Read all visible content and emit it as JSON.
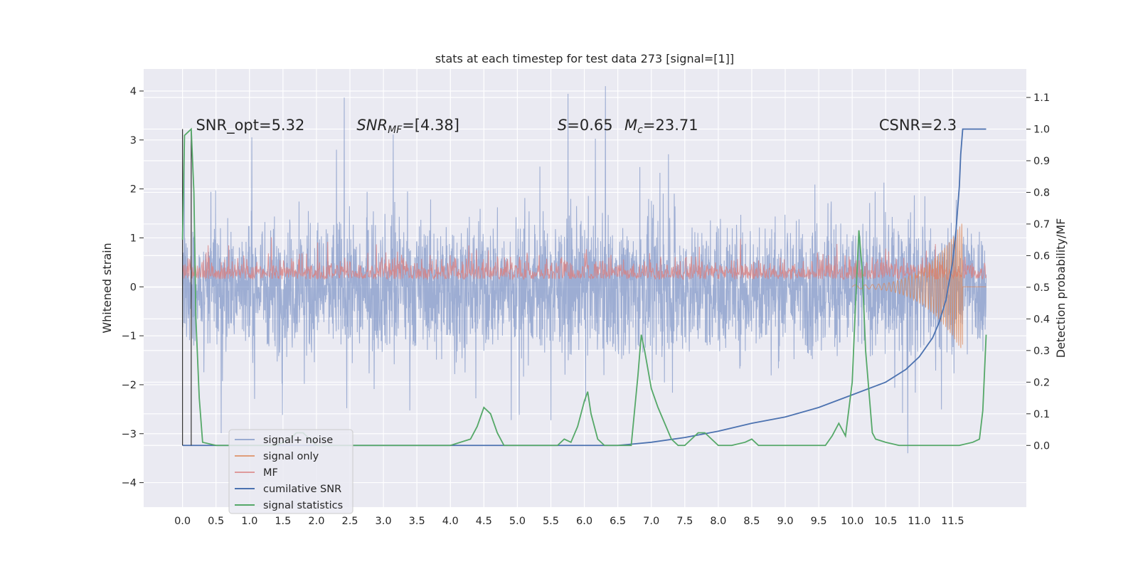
{
  "chart_data": {
    "type": "line",
    "title": "stats at each timestep for test data 273 [signal=[1]]",
    "xlabel": "",
    "ylabel_left": "Whitened strain",
    "ylabel_right": "Detection probability/MF",
    "xlim": [
      -0.58,
      12.6
    ],
    "ylim_left": [
      -4.5,
      4.45
    ],
    "ylim_right": [
      -0.195,
      1.19
    ],
    "grid": true,
    "x_ticks": [
      "0.0",
      "0.5",
      "1.0",
      "1.5",
      "2.0",
      "2.5",
      "3.0",
      "3.5",
      "4.0",
      "4.5",
      "5.0",
      "5.5",
      "6.0",
      "6.5",
      "7.0",
      "7.5",
      "8.0",
      "8.5",
      "9.0",
      "9.5",
      "10.0",
      "10.5",
      "11.0",
      "11.5"
    ],
    "y_ticks_left": [
      "4",
      "3",
      "2",
      "1",
      "0",
      "−1",
      "−2",
      "−3",
      "−4"
    ],
    "y_ticks_right": [
      "1.1",
      "1.0",
      "0.9",
      "0.8",
      "0.7",
      "0.6",
      "0.5",
      "0.4",
      "0.3",
      "0.2",
      "0.1",
      "0.0"
    ],
    "annotations": [
      {
        "text": "SNR_opt=5.32",
        "x": 0.2,
        "y": 3.2
      },
      {
        "text": "SNR_MF=[4.38]",
        "x": 2.6,
        "y": 3.2
      },
      {
        "text": "S=0.65",
        "x": 5.6,
        "y": 3.2
      },
      {
        "text": "M_c=23.71",
        "x": 6.6,
        "y": 3.2
      },
      {
        "text": "CSNR=2.3",
        "x": 10.4,
        "y": 3.2
      }
    ],
    "legend": {
      "position": "lower-left",
      "entries": [
        "signal+ noise",
        "signal only",
        "MF",
        "cumilative SNR",
        "signal statistics"
      ]
    },
    "series": [
      {
        "name": "signal+ noise",
        "axis": "left",
        "color": "#7f96c6",
        "style": "noise",
        "description_range": [
          -3.3,
          3.9
        ]
      },
      {
        "name": "signal only",
        "axis": "left",
        "color": "#dd8452",
        "style": "chirp"
      },
      {
        "name": "MF",
        "axis": "right",
        "color": "#d98080",
        "style": "noise-band",
        "x_range": [
          0.0,
          12.0
        ],
        "y_range": [
          0.5,
          0.63
        ]
      },
      {
        "name": "cumilative SNR",
        "axis": "right",
        "color": "#4c72b0",
        "x": [
          0.0,
          6.5,
          7.0,
          7.5,
          8.0,
          8.5,
          9.0,
          9.5,
          10.0,
          10.5,
          10.8,
          11.0,
          11.2,
          11.3,
          11.4,
          11.5,
          11.55,
          11.6,
          11.62,
          11.65,
          12.0
        ],
        "y": [
          0.0,
          0.0,
          0.01,
          0.025,
          0.045,
          0.07,
          0.09,
          0.12,
          0.16,
          0.2,
          0.24,
          0.28,
          0.34,
          0.39,
          0.46,
          0.58,
          0.68,
          0.82,
          0.92,
          1.0,
          1.0
        ]
      },
      {
        "name": "signal statistics",
        "axis": "right",
        "color": "#55a868",
        "x": [
          0.0,
          0.03,
          0.08,
          0.13,
          0.17,
          0.2,
          0.25,
          0.3,
          0.5,
          1.4,
          1.6,
          1.7,
          1.8,
          1.9,
          2.0,
          2.1,
          2.2,
          2.8,
          4.0,
          4.3,
          4.4,
          4.5,
          4.6,
          4.7,
          4.8,
          5.6,
          5.7,
          5.8,
          5.9,
          6.0,
          6.05,
          6.1,
          6.2,
          6.3,
          6.7,
          6.8,
          6.85,
          6.9,
          7.0,
          7.1,
          7.2,
          7.3,
          7.4,
          7.5,
          7.6,
          7.7,
          7.8,
          7.9,
          8.0,
          8.2,
          8.4,
          8.5,
          8.6,
          8.8,
          9.6,
          9.7,
          9.8,
          9.9,
          10.0,
          10.05,
          10.1,
          10.15,
          10.2,
          10.3,
          10.35,
          10.5,
          10.7,
          11.6,
          11.8,
          11.9,
          11.95,
          12.0
        ],
        "y": [
          0.65,
          0.98,
          0.99,
          1.0,
          0.8,
          0.4,
          0.15,
          0.01,
          0.0,
          0.0,
          0.02,
          0.04,
          0.04,
          0.02,
          0.0,
          0.0,
          0.0,
          0.0,
          0.0,
          0.02,
          0.06,
          0.12,
          0.1,
          0.04,
          0.0,
          0.0,
          0.02,
          0.01,
          0.06,
          0.14,
          0.17,
          0.1,
          0.02,
          0.0,
          0.0,
          0.22,
          0.35,
          0.3,
          0.18,
          0.12,
          0.07,
          0.02,
          0.0,
          0.0,
          0.02,
          0.04,
          0.04,
          0.02,
          0.0,
          0.0,
          0.01,
          0.02,
          0.0,
          0.0,
          0.0,
          0.03,
          0.07,
          0.03,
          0.2,
          0.45,
          0.68,
          0.55,
          0.3,
          0.04,
          0.02,
          0.01,
          0.0,
          0.0,
          0.01,
          0.02,
          0.11,
          0.35
        ]
      }
    ]
  }
}
